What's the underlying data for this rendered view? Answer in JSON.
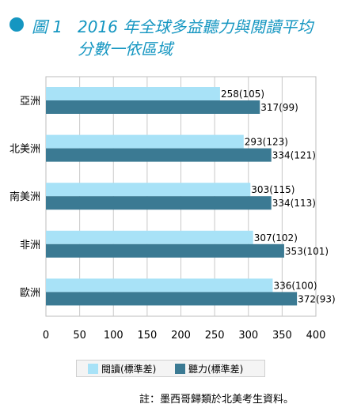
{
  "figure": {
    "label": "圖 1",
    "title_line1": "2016 年全球多益聽力與閱讀平均",
    "title_line2": "分數一依區域"
  },
  "colors": {
    "reading": "#a8e2f7",
    "listening": "#3b7a93",
    "title": "#1596c1"
  },
  "legend": {
    "reading": "閱讀(標準差)",
    "listening": "聽力(標準差)"
  },
  "note": "註：墨西哥歸類於北美考生資料。",
  "chart_data": {
    "type": "bar",
    "orientation": "horizontal",
    "categories": [
      "亞洲",
      "北美洲",
      "南美洲",
      "非洲",
      "歐洲"
    ],
    "series": [
      {
        "name": "閱讀(標準差)",
        "values": [
          258,
          293,
          303,
          307,
          336
        ],
        "labels": [
          "258(105)",
          "293(123)",
          "303(115)",
          "307(102)",
          "336(100)"
        ]
      },
      {
        "name": "聽力(標準差)",
        "values": [
          317,
          334,
          334,
          353,
          372
        ],
        "labels": [
          "317(99)",
          "334(121)",
          "334(113)",
          "353(101)",
          "372(93)"
        ]
      }
    ],
    "xlim": [
      0,
      400
    ],
    "xticks": [
      "0",
      "50",
      "100",
      "150",
      "200",
      "250",
      "300",
      "350",
      "400"
    ],
    "grid": true,
    "legend_position": "bottom"
  }
}
